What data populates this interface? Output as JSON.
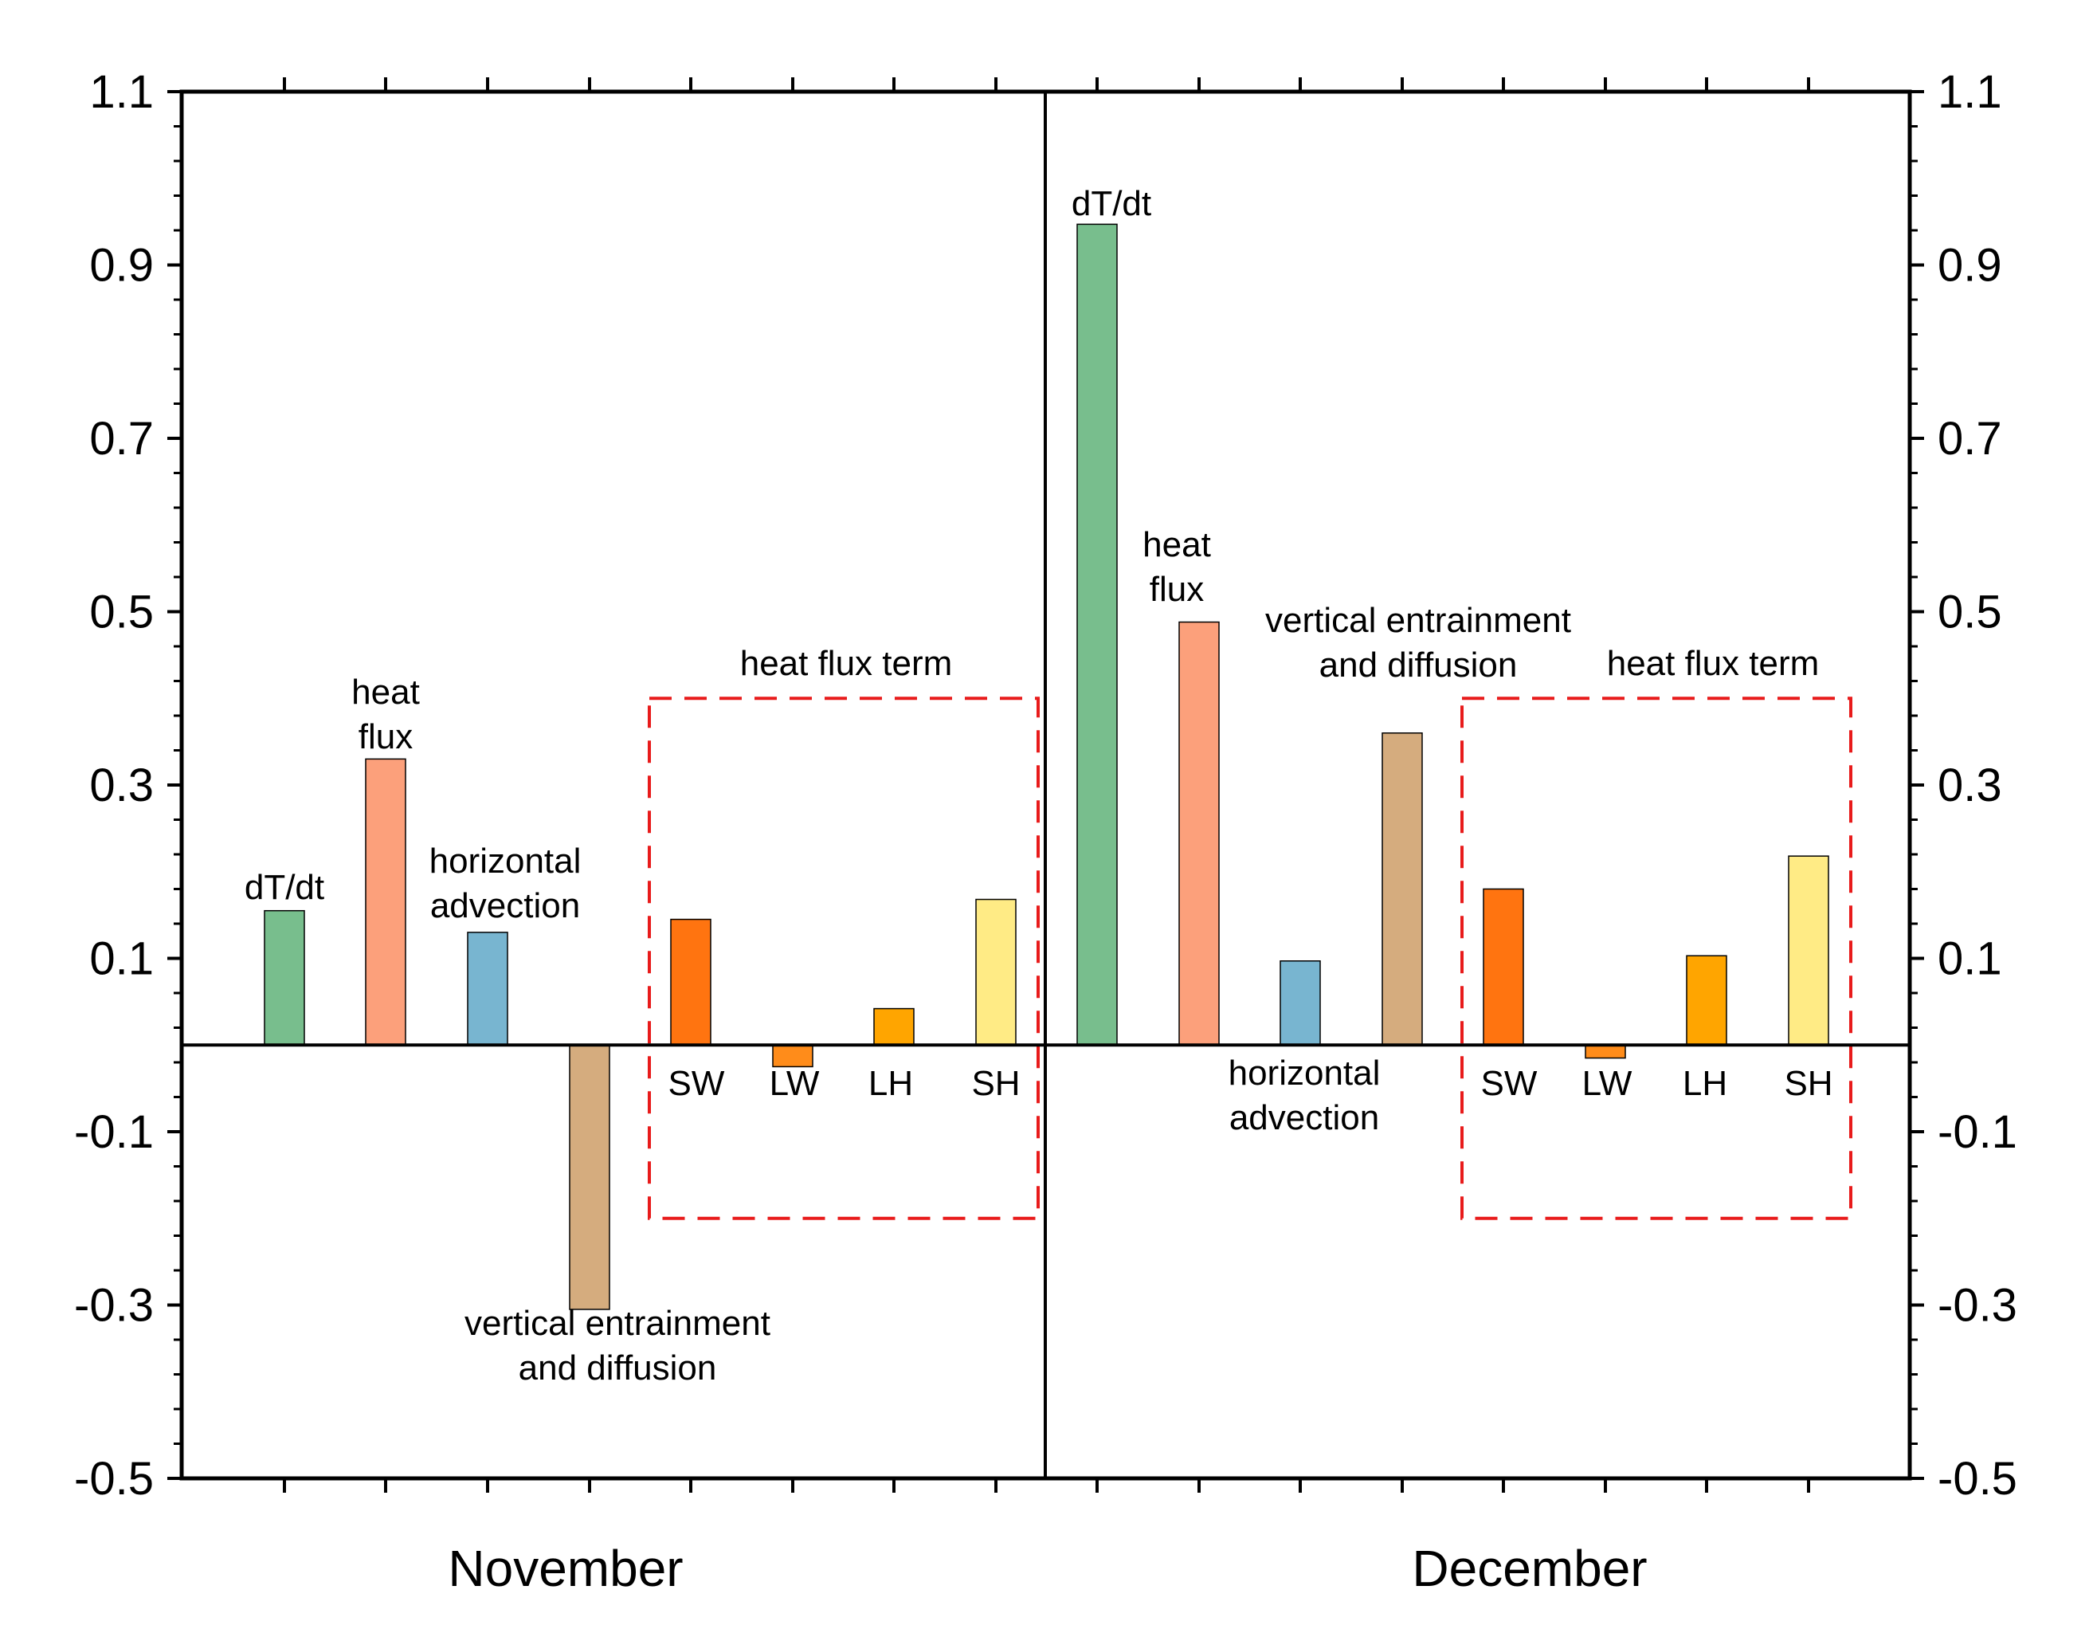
{
  "chart_data": {
    "type": "bar",
    "ylim": [
      -0.5,
      1.1
    ],
    "yticks": [
      "-0.5",
      "-0.3",
      "-0.1",
      "0.1",
      "0.3",
      "0.5",
      "0.7",
      "0.9",
      "1.1"
    ],
    "grid": false,
    "groups": [
      {
        "name": "November",
        "box_title": "heat flux term",
        "bars": [
          {
            "id": "dTdt",
            "value": 0.155,
            "color": "#78BE8D",
            "label_lines": [
              "dT/dt"
            ]
          },
          {
            "id": "heatflux",
            "value": 0.33,
            "color": "#FCA07B",
            "label_lines": [
              "heat",
              "flux"
            ]
          },
          {
            "id": "hadv",
            "value": 0.13,
            "color": "#78B5D0",
            "label_lines": [
              "horizontal",
              "advection"
            ]
          },
          {
            "id": "vent",
            "value": -0.305,
            "color": "#D5AC7E",
            "label_lines": [
              "vertical entrainment",
              "and diffusion"
            ]
          },
          {
            "id": "SW",
            "value": 0.145,
            "color": "#FF7410",
            "label_lines": [
              "SW"
            ]
          },
          {
            "id": "LW",
            "value": -0.025,
            "color": "#FF8C1A",
            "label_lines": [
              "LW"
            ]
          },
          {
            "id": "LH",
            "value": 0.042,
            "color": "#FFA500",
            "label_lines": [
              "LH"
            ]
          },
          {
            "id": "SH",
            "value": 0.168,
            "color": "#FFEB85",
            "label_lines": [
              "SH"
            ]
          }
        ]
      },
      {
        "name": "December",
        "box_title": "heat flux term",
        "bars": [
          {
            "id": "dTdt",
            "value": 0.947,
            "color": "#78BE8D",
            "label_lines": [
              "dT/dt"
            ]
          },
          {
            "id": "heatflux",
            "value": 0.488,
            "color": "#FCA07B",
            "label_lines": [
              "heat",
              "flux"
            ]
          },
          {
            "id": "hadv",
            "value": 0.097,
            "color": "#78B5D0",
            "label_lines": [
              "horizontal",
              "advection"
            ]
          },
          {
            "id": "vent",
            "value": 0.36,
            "color": "#D5AC7E",
            "label_lines": [
              "vertical entrainment",
              "and diffusion"
            ]
          },
          {
            "id": "SW",
            "value": 0.18,
            "color": "#FF7410",
            "label_lines": [
              "SW"
            ]
          },
          {
            "id": "LW",
            "value": -0.015,
            "color": "#FF8C1A",
            "label_lines": [
              "LW"
            ]
          },
          {
            "id": "LH",
            "value": 0.103,
            "color": "#FFA500",
            "label_lines": [
              "LH"
            ]
          },
          {
            "id": "SH",
            "value": 0.218,
            "color": "#FFEB85",
            "label_lines": [
              "SH"
            ]
          }
        ]
      }
    ],
    "heat_flux_box_range": [
      -0.2,
      0.4
    ]
  }
}
